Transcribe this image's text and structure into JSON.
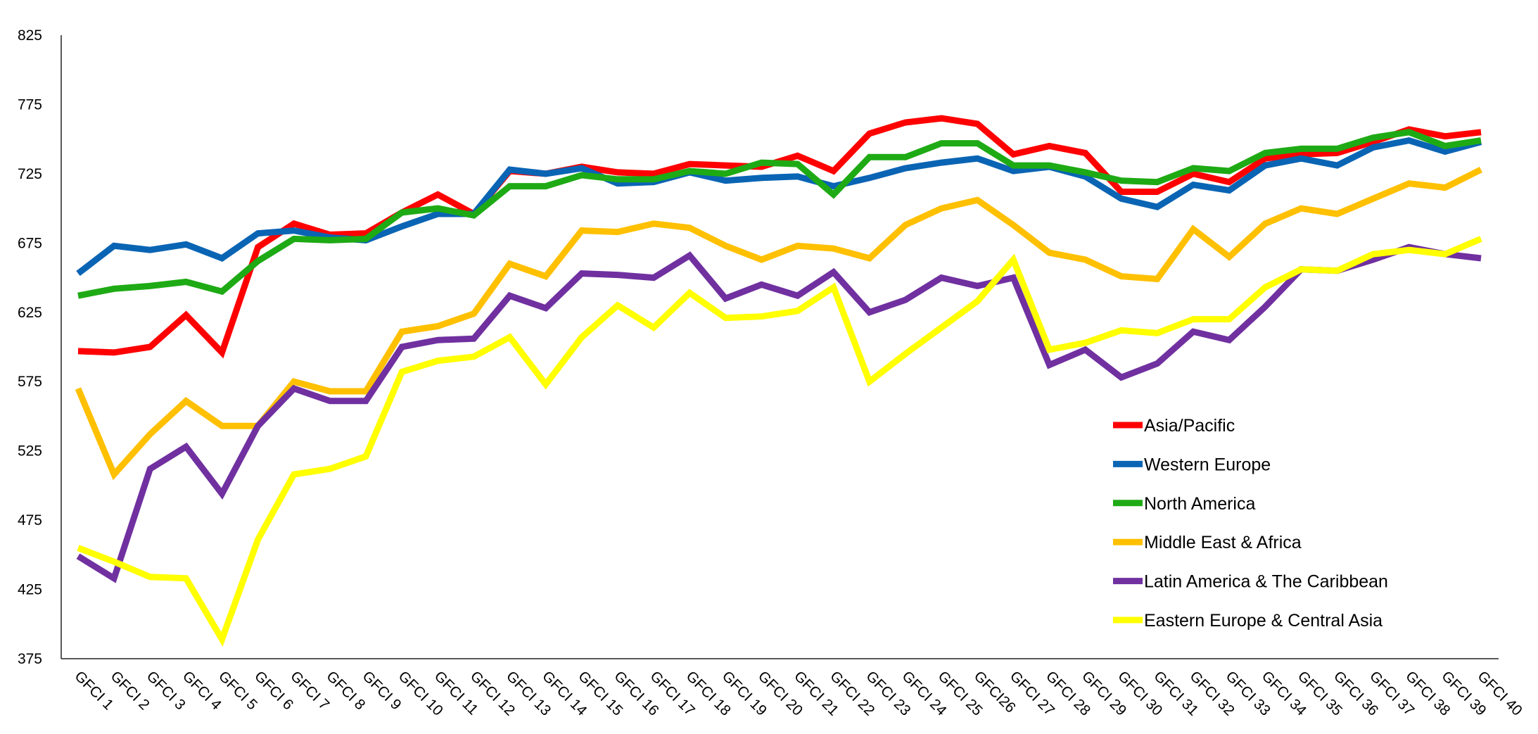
{
  "chart_data": {
    "type": "line",
    "title": "",
    "xlabel": "",
    "ylabel": "",
    "ylim": [
      375,
      825
    ],
    "yticks": [
      375,
      425,
      475,
      525,
      575,
      625,
      675,
      725,
      775,
      825
    ],
    "ytick_labels": [
      "375",
      "425",
      "475",
      "525",
      "575",
      "625",
      "675",
      "725",
      "775",
      "825"
    ],
    "grid": false,
    "legend_position": "right-middle",
    "categories": [
      "GFCI 1",
      "GFCI 2",
      "GFCI 3",
      "GFCI 4",
      "GFCI 5",
      "GFCI 6",
      "GFCI 7",
      "GFCI 8",
      "GFCI 9",
      "GFCI 10",
      "GFCI 11",
      "GFCI 12",
      "GFCI 13",
      "GFCI 14",
      "GFCI 15",
      "GFCI 16",
      "GFCI 17",
      "GFCI 18",
      "GFCI 19",
      "GFCI 20",
      "GFCI 21",
      "GFCI 22",
      "GFCI 23",
      "GFCI 24",
      "GFCI 25",
      "GFCI26",
      "GFCI 27",
      "GFCI 28",
      "GFCI 29",
      "GFCI 30",
      "GFCI 31",
      "GFCI 32",
      "GFCI 33",
      "GFCI 34",
      "GFCI 35",
      "GFCI 36",
      "GFCI 37",
      "GFCI 38",
      "GFCI 39",
      "GFCI 40"
    ],
    "series": [
      {
        "name": "Asia/Pacific",
        "color": "#ff0000",
        "values": [
          597,
          596,
          600,
          623,
          596,
          672,
          689,
          681,
          682,
          697,
          710,
          696,
          727,
          725,
          730,
          726,
          725,
          732,
          731,
          730,
          738,
          727,
          754,
          762,
          765,
          761,
          739,
          745,
          740,
          712,
          712,
          725,
          719,
          736,
          739,
          740,
          748,
          757,
          752,
          755
        ]
      },
      {
        "name": "Western Europe",
        "color": "#0a64b4",
        "values": [
          653,
          673,
          670,
          674,
          664,
          682,
          684,
          679,
          677,
          687,
          696,
          696,
          728,
          725,
          729,
          718,
          719,
          726,
          720,
          722,
          723,
          716,
          722,
          729,
          733,
          736,
          727,
          730,
          723,
          707,
          701,
          717,
          713,
          731,
          736,
          731,
          744,
          749,
          741,
          748
        ]
      },
      {
        "name": "North America",
        "color": "#1eaa14",
        "values": [
          637,
          642,
          644,
          647,
          640,
          662,
          678,
          677,
          678,
          697,
          700,
          695,
          716,
          716,
          724,
          721,
          721,
          727,
          725,
          733,
          732,
          710,
          737,
          737,
          747,
          747,
          731,
          731,
          726,
          720,
          719,
          729,
          727,
          740,
          743,
          743,
          751,
          755,
          745,
          749
        ]
      },
      {
        "name": "Middle East & Africa",
        "color": "#ffc000",
        "values": [
          570,
          508,
          537,
          561,
          543,
          543,
          575,
          568,
          568,
          611,
          615,
          624,
          660,
          651,
          684,
          683,
          689,
          686,
          673,
          663,
          673,
          671,
          664,
          688,
          700,
          706,
          688,
          668,
          663,
          651,
          649,
          685,
          665,
          689,
          700,
          696,
          707,
          718,
          715,
          728
        ]
      },
      {
        "name": "Latin America & The Caribbean",
        "color": "#7030a0",
        "values": [
          449,
          433,
          512,
          528,
          494,
          543,
          570,
          561,
          561,
          600,
          605,
          606,
          637,
          628,
          653,
          652,
          650,
          666,
          635,
          645,
          637,
          654,
          625,
          634,
          650,
          644,
          650,
          587,
          598,
          578,
          588,
          611,
          605,
          629,
          656,
          655,
          663,
          672,
          667,
          664
        ]
      },
      {
        "name": "Eastern Europe & Central Asia",
        "color": "#ffff00",
        "values": [
          455,
          445,
          434,
          433,
          389,
          461,
          508,
          512,
          521,
          582,
          590,
          593,
          607,
          573,
          607,
          630,
          614,
          639,
          621,
          622,
          626,
          643,
          575,
          595,
          614,
          633,
          663,
          598,
          603,
          612,
          610,
          620,
          620,
          643,
          656,
          655,
          667,
          670,
          667,
          678
        ]
      }
    ]
  }
}
